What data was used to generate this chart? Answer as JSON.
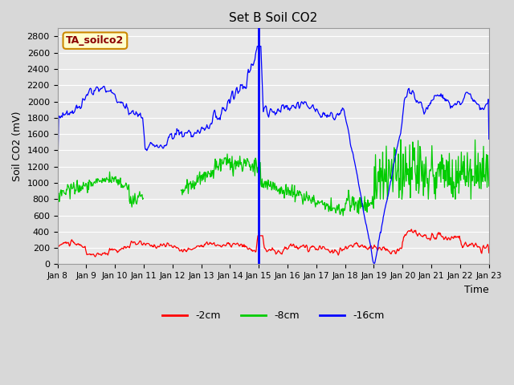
{
  "title": "Set B Soil CO2",
  "xlabel": "Time",
  "ylabel": "Soil CO2 (mV)",
  "ylim": [
    0,
    2900
  ],
  "yticks": [
    0,
    200,
    400,
    600,
    800,
    1000,
    1200,
    1400,
    1600,
    1800,
    2000,
    2200,
    2400,
    2600,
    2800
  ],
  "xtick_labels": [
    "Jan 8",
    "Jan 9",
    "Jan 10",
    "Jan 11",
    "Jan 12",
    "Jan 13",
    "Jan 14",
    "Jan 15",
    "Jan 16",
    "Jan 17",
    "Jan 18",
    "Jan 19",
    "Jan 20",
    "Jan 21",
    "Jan 22",
    "Jan 23"
  ],
  "legend_label": "TA_soilco2",
  "series_labels": [
    "-2cm",
    "-8cm",
    "-16cm"
  ],
  "colors": [
    "#ff0000",
    "#00cc00",
    "#0000ff"
  ],
  "bg_color": "#d8d8d8",
  "plot_bg": "#e8e8e8",
  "grid_color": "#ffffff",
  "tag_bg": "#ffffcc",
  "tag_border": "#cc8800",
  "n_days": 15,
  "pts_per_day": 48
}
